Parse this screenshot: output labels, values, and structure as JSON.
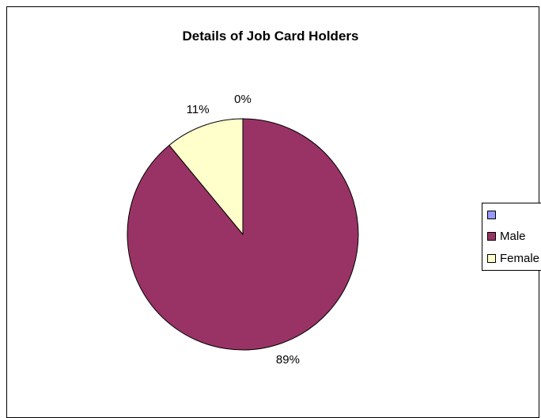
{
  "chart_data": {
    "type": "pie",
    "title": "Details of Job Card Holders",
    "categories": [
      "",
      "Male",
      "Female"
    ],
    "values": [
      0,
      89,
      11
    ],
    "labels": [
      "0%",
      "89%",
      "11%"
    ],
    "colors": [
      "#9999FF",
      "#993366",
      "#FFFFCC"
    ],
    "legend_position": "right"
  }
}
